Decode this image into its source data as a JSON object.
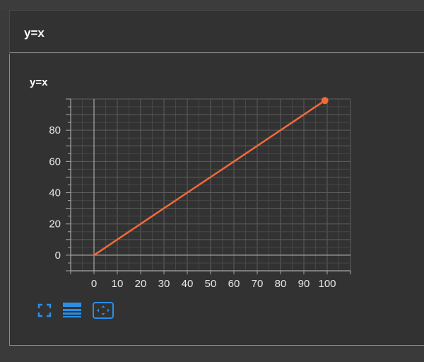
{
  "page": {
    "title": "y=x"
  },
  "chart_data": {
    "type": "line",
    "title": "y=x",
    "xlabel": "",
    "ylabel": "",
    "xlim": [
      -10,
      110
    ],
    "ylim": [
      -10,
      100
    ],
    "x_ticks": [
      0,
      10,
      20,
      30,
      40,
      50,
      60,
      70,
      80,
      90,
      100
    ],
    "y_ticks": [
      0,
      20,
      40,
      60,
      80
    ],
    "grid": true,
    "series": [
      {
        "color": "#f06a3a",
        "x": [
          0,
          10,
          20,
          30,
          40,
          50,
          60,
          70,
          80,
          90,
          99
        ],
        "y": [
          0,
          10,
          20,
          30,
          40,
          50,
          60,
          70,
          80,
          90,
          99
        ],
        "end_marker": true
      }
    ]
  },
  "toolbar": {
    "icons": [
      "fullscreen-icon",
      "table-icon",
      "zoom-reset-icon"
    ],
    "accent": "#2a8fe8"
  }
}
